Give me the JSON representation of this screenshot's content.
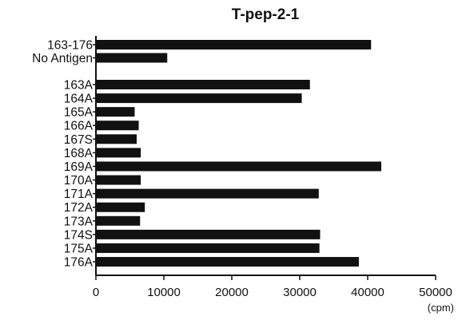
{
  "chart_data": {
    "type": "bar",
    "orientation": "horizontal",
    "title": "T-pep-2-1",
    "xlabel": "",
    "x_unit": "(cpm)",
    "ylabel": "",
    "xlim": [
      0,
      50000
    ],
    "x_ticks": [
      0,
      10000,
      20000,
      30000,
      40000,
      50000
    ],
    "categories": [
      "163-176",
      "No Antigen",
      "163A",
      "164A",
      "165A",
      "166A",
      "167S",
      "168A",
      "169A",
      "170A",
      "171A",
      "172A",
      "173A",
      "174S",
      "175A",
      "176A"
    ],
    "values": [
      40500,
      10500,
      31500,
      30300,
      5700,
      6300,
      6000,
      6600,
      42000,
      6600,
      32800,
      7200,
      6500,
      33000,
      32900,
      38700
    ],
    "bar_color": "#111111",
    "grid": false,
    "legend": "none"
  }
}
